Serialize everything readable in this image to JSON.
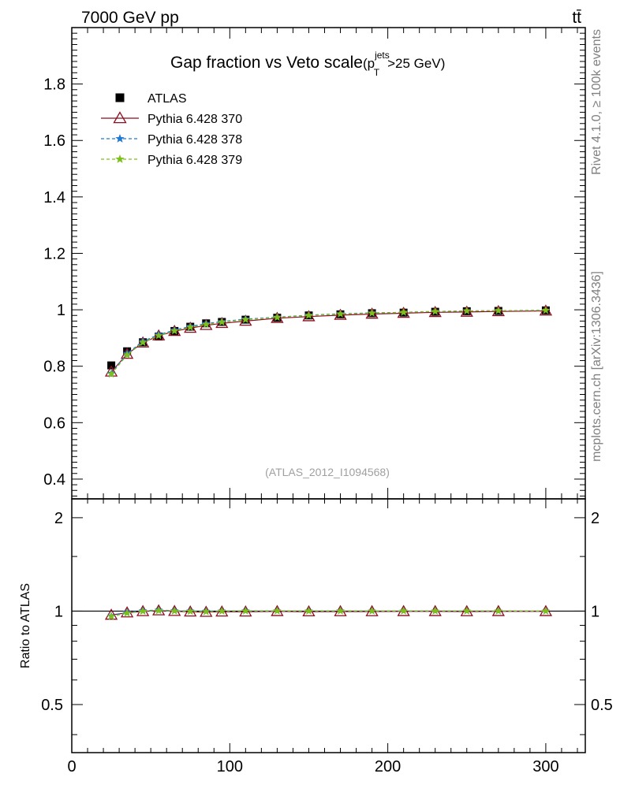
{
  "header": {
    "process": "7000 GeV pp",
    "final_state": "tt̄",
    "side_rivet": "Rivet 4.1.0, ≥ 100k events",
    "side_mcplots": "mcplots.cern.ch [arXiv:1306.3436]"
  },
  "colors": {
    "atlas": "#000000",
    "pythia370": "#8b0f1e",
    "pythia378": "#1f78d6",
    "pythia379": "#7cc01a",
    "axis": "#000000",
    "side_text": "#808080",
    "watermark": "#a0a0a0"
  },
  "chart_data": {
    "type": "line",
    "title_main": "Gap fraction vs Veto scale",
    "title_paren_open": "(p",
    "title_sup": "jets",
    "title_sub": "T",
    "title_rest": ">25 GeV)",
    "watermark": "(ATLAS_2012_I1094568)",
    "xlim": [
      0,
      325
    ],
    "ylim_main": [
      0.33,
      2.0
    ],
    "ylim_ratio": [
      0.35,
      2.3
    ],
    "ratio_ylabel": "Ratio to ATLAS",
    "x_ticks": [
      "0",
      "100",
      "200",
      "300"
    ],
    "y_ticks_main": [
      "0.4",
      "0.6",
      "0.8",
      "1",
      "1.2",
      "1.4",
      "1.6",
      "1.8"
    ],
    "y_ticks_ratio": [
      "0.5",
      "1",
      "2"
    ],
    "x": [
      25,
      35,
      45,
      55,
      65,
      75,
      85,
      95,
      110,
      130,
      150,
      170,
      190,
      210,
      230,
      250,
      270,
      300
    ],
    "series": [
      {
        "name": "ATLAS",
        "marker": "square",
        "values": [
          0.803,
          0.853,
          0.885,
          0.905,
          0.925,
          0.94,
          0.952,
          0.957,
          0.965,
          0.972,
          0.98,
          0.984,
          0.988,
          0.99,
          0.993,
          0.995,
          0.996,
          0.998
        ]
      },
      {
        "name": "Pythia 6.428 370",
        "marker": "triangle",
        "values": [
          0.78,
          0.843,
          0.883,
          0.908,
          0.924,
          0.935,
          0.945,
          0.952,
          0.96,
          0.97,
          0.976,
          0.981,
          0.985,
          0.988,
          0.991,
          0.992,
          0.994,
          0.996
        ]
      },
      {
        "name": "Pythia 6.428 378",
        "marker": "star",
        "values": [
          0.775,
          0.845,
          0.888,
          0.912,
          0.928,
          0.941,
          0.951,
          0.958,
          0.967,
          0.974,
          0.981,
          0.986,
          0.989,
          0.991,
          0.994,
          0.996,
          0.997,
          0.998
        ]
      },
      {
        "name": "Pythia 6.428 379",
        "marker": "star",
        "values": [
          0.772,
          0.84,
          0.884,
          0.908,
          0.925,
          0.938,
          0.948,
          0.956,
          0.965,
          0.973,
          0.98,
          0.985,
          0.988,
          0.991,
          0.994,
          0.996,
          0.997,
          0.998
        ]
      }
    ]
  }
}
